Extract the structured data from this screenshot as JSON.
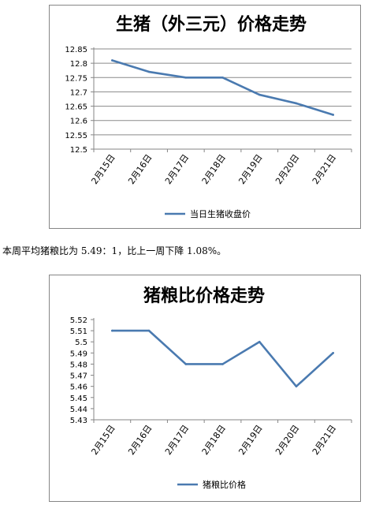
{
  "chart_data": [
    {
      "type": "line",
      "title": "生猪（外三元）价格走势",
      "categories": [
        "2月15日",
        "2月16日",
        "2月17日",
        "2月18日",
        "2月19日",
        "2月20日",
        "2月21日"
      ],
      "series": [
        {
          "name": "当日生猪收盘价",
          "values": [
            12.81,
            12.77,
            12.75,
            12.75,
            12.69,
            12.66,
            12.62
          ]
        }
      ],
      "yticks": [
        "12.85",
        "12.8",
        "12.75",
        "12.7",
        "12.65",
        "12.6",
        "12.55",
        "12.5"
      ],
      "ylim": [
        12.5,
        12.85
      ],
      "grid": true,
      "legend": "bottom",
      "color": "#4a7ab0"
    },
    {
      "type": "line",
      "title": "猪粮比价格走势",
      "categories": [
        "2月15日",
        "2月16日",
        "2月17日",
        "2月18日",
        "2月19日",
        "2月20日",
        "2月21日"
      ],
      "series": [
        {
          "name": "猪粮比价格",
          "values": [
            5.51,
            5.51,
            5.48,
            5.48,
            5.5,
            5.46,
            5.49
          ]
        }
      ],
      "yticks": [
        "5.52",
        "5.51",
        "5.5",
        "5.49",
        "5.48",
        "5.47",
        "5.46",
        "5.45",
        "5.44",
        "5.43"
      ],
      "ylim": [
        5.43,
        5.52
      ],
      "grid": false,
      "legend": "bottom",
      "color": "#4a7ab0"
    }
  ],
  "caption": {
    "text_pre": "本周平均猪粮比为 ",
    "ratio": "5.49：1",
    "text_mid": "，比上一周下降 ",
    "pct": "1.08%",
    "text_end": "。"
  }
}
